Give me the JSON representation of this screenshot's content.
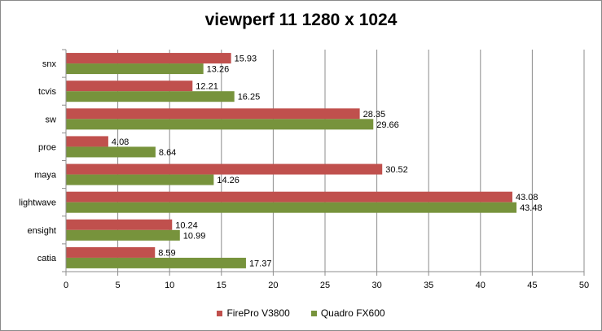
{
  "chart_data": {
    "type": "bar",
    "orientation": "horizontal",
    "title": "viewperf 11 1280 x 1024",
    "categories": [
      "snx",
      "tcvis",
      "sw",
      "proe",
      "maya",
      "lightwave",
      "ensight",
      "catia"
    ],
    "series": [
      {
        "name": "FirePro V3800",
        "color": "#C0504D",
        "values": [
          15.93,
          12.21,
          28.35,
          4.08,
          30.52,
          43.08,
          10.24,
          8.59
        ]
      },
      {
        "name": "Quadro FX600",
        "color": "#77933C",
        "values": [
          13.26,
          16.25,
          29.66,
          8.64,
          14.26,
          43.48,
          10.99,
          17.37
        ]
      }
    ],
    "x_ticks": [
      0,
      5,
      10,
      15,
      20,
      25,
      30,
      35,
      40,
      45,
      50
    ],
    "xlim": [
      0,
      50
    ],
    "grid": true,
    "legend_position": "bottom"
  }
}
